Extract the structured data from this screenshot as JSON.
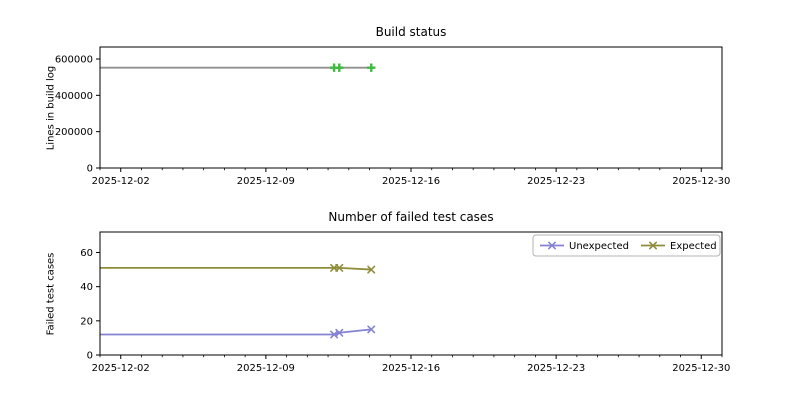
{
  "figure": {
    "background": "#ffffff"
  },
  "chart_data": [
    {
      "type": "line",
      "title": "Build status",
      "xlabel": "",
      "ylabel": "Lines in build log",
      "grid": false,
      "xlim": [
        "2025-12-01T00:00",
        "2025-12-31T00:00"
      ],
      "ylim": [
        0,
        666000
      ],
      "yticks": [
        0,
        200000,
        400000,
        600000
      ],
      "xticks": [
        "2025-12-02",
        "2025-12-09",
        "2025-12-16",
        "2025-12-23",
        "2025-12-30"
      ],
      "x_minor_tick_interval_days": 1,
      "series": [
        {
          "name": "Lines in build log",
          "color": "#909090",
          "marker": "plus",
          "marker_color": "#3dbb3d",
          "points": [
            {
              "x": "2025-12-01T00:00",
              "y": 552000,
              "marker": false
            },
            {
              "x": "2025-12-12T07:00",
              "y": 552000,
              "marker": true
            },
            {
              "x": "2025-12-12T13:00",
              "y": 552000,
              "marker": true
            },
            {
              "x": "2025-12-14T02:00",
              "y": 552000,
              "marker": true
            }
          ]
        }
      ]
    },
    {
      "type": "line",
      "title": "Number of failed test cases",
      "xlabel": "",
      "ylabel": "Failed test cases",
      "grid": false,
      "xlim": [
        "2025-12-01T00:00",
        "2025-12-31T00:00"
      ],
      "ylim": [
        0,
        72
      ],
      "yticks": [
        0,
        20,
        40,
        60
      ],
      "xticks": [
        "2025-12-02",
        "2025-12-09",
        "2025-12-16",
        "2025-12-23",
        "2025-12-30"
      ],
      "x_minor_tick_interval_days": 1,
      "legend": {
        "position": "upper right",
        "items": [
          "Unexpected",
          "Expected"
        ]
      },
      "series": [
        {
          "name": "Unexpected",
          "color": "#8583d1",
          "marker": "x",
          "points": [
            {
              "x": "2025-12-01T00:00",
              "y": 12,
              "marker": false
            },
            {
              "x": "2025-12-12T07:00",
              "y": 12,
              "marker": true
            },
            {
              "x": "2025-12-12T13:00",
              "y": 13,
              "marker": true
            },
            {
              "x": "2025-12-14T02:00",
              "y": 15,
              "marker": true
            }
          ]
        },
        {
          "name": "Expected",
          "color": "#8f8d3a",
          "marker": "x",
          "points": [
            {
              "x": "2025-12-01T00:00",
              "y": 51,
              "marker": false
            },
            {
              "x": "2025-12-12T07:00",
              "y": 51,
              "marker": true
            },
            {
              "x": "2025-12-12T13:00",
              "y": 51,
              "marker": true
            },
            {
              "x": "2025-12-14T02:00",
              "y": 50,
              "marker": true
            }
          ]
        }
      ]
    }
  ]
}
